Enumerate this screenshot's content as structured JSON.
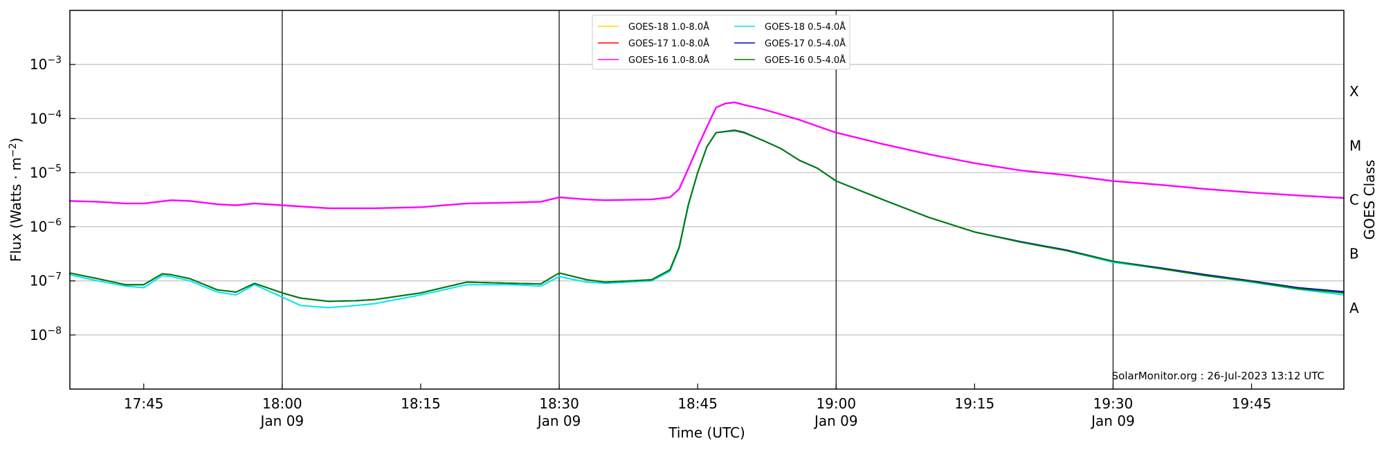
{
  "chart_data": {
    "type": "line",
    "xlabel": "Time (UTC)",
    "ylabel": "Flux (Watts · m⁻²)",
    "y2label": "GOES Class",
    "yscale": "log",
    "xlim": [
      "17:37",
      "19:55"
    ],
    "ylim": [
      1e-09,
      0.01
    ],
    "yticks": [
      {
        "value": 1e-08,
        "base": "10",
        "exp": "−8"
      },
      {
        "value": 1e-07,
        "base": "10",
        "exp": "−7"
      },
      {
        "value": 1e-06,
        "base": "10",
        "exp": "−6"
      },
      {
        "value": 1e-05,
        "base": "10",
        "exp": "−5"
      },
      {
        "value": 0.0001,
        "base": "10",
        "exp": "−4"
      },
      {
        "value": 0.001,
        "base": "10",
        "exp": "−3"
      }
    ],
    "xticks": [
      {
        "time": "17:45",
        "label": "17:45",
        "sublabel": ""
      },
      {
        "time": "18:00",
        "label": "18:00",
        "sublabel": "Jan 09"
      },
      {
        "time": "18:15",
        "label": "18:15",
        "sublabel": ""
      },
      {
        "time": "18:30",
        "label": "18:30",
        "sublabel": "Jan 09"
      },
      {
        "time": "18:45",
        "label": "18:45",
        "sublabel": ""
      },
      {
        "time": "19:00",
        "label": "19:00",
        "sublabel": "Jan 09"
      },
      {
        "time": "19:15",
        "label": "19:15",
        "sublabel": ""
      },
      {
        "time": "19:30",
        "label": "19:30",
        "sublabel": "Jan 09"
      },
      {
        "time": "19:45",
        "label": "19:45",
        "sublabel": ""
      }
    ],
    "day_lines": [
      "18:00",
      "18:30",
      "19:00",
      "19:30"
    ],
    "goes_classes": [
      {
        "label": "A",
        "value": 3.16e-08
      },
      {
        "label": "B",
        "value": 3.16e-07
      },
      {
        "label": "C",
        "value": 3.16e-06
      },
      {
        "label": "M",
        "value": 3.16e-05
      },
      {
        "label": "X",
        "value": 0.000316
      }
    ],
    "grid": true,
    "legend_position": "top-center",
    "watermark": "SolarMonitor.org : 26-Jul-2023 13:12 UTC",
    "legend": [
      {
        "name": "GOES-18 1.0-8.0Å",
        "color": "#ffd700"
      },
      {
        "name": "GOES-17 1.0-8.0Å",
        "color": "#ff0000"
      },
      {
        "name": "GOES-16 1.0-8.0Å",
        "color": "#ff00ff"
      },
      {
        "name": "GOES-18 0.5-4.0Å",
        "color": "#00e5ee"
      },
      {
        "name": "GOES-17 0.5-4.0Å",
        "color": "#0000cd"
      },
      {
        "name": "GOES-16 0.5-4.0Å",
        "color": "#008000"
      }
    ],
    "series": [
      {
        "name": "GOES-16 1.0-8.0Å",
        "color": "#ff00ff",
        "width": 2.4,
        "points": [
          [
            "17:37",
            3e-06
          ],
          [
            "17:40",
            2.9e-06
          ],
          [
            "17:43",
            2.7e-06
          ],
          [
            "17:45",
            2.7e-06
          ],
          [
            "17:48",
            3.1e-06
          ],
          [
            "17:50",
            3e-06
          ],
          [
            "17:53",
            2.6e-06
          ],
          [
            "17:55",
            2.5e-06
          ],
          [
            "17:57",
            2.7e-06
          ],
          [
            "18:00",
            2.5e-06
          ],
          [
            "18:05",
            2.2e-06
          ],
          [
            "18:10",
            2.2e-06
          ],
          [
            "18:15",
            2.3e-06
          ],
          [
            "18:20",
            2.7e-06
          ],
          [
            "18:25",
            2.8e-06
          ],
          [
            "18:28",
            2.9e-06
          ],
          [
            "18:30",
            3.5e-06
          ],
          [
            "18:33",
            3.2e-06
          ],
          [
            "18:35",
            3.1e-06
          ],
          [
            "18:40",
            3.2e-06
          ],
          [
            "18:42",
            3.5e-06
          ],
          [
            "18:43",
            5e-06
          ],
          [
            "18:44",
            1.2e-05
          ],
          [
            "18:45",
            3e-05
          ],
          [
            "18:46",
            7e-05
          ],
          [
            "18:47",
            0.00016
          ],
          [
            "18:48",
            0.00019
          ],
          [
            "18:49",
            0.0002
          ],
          [
            "18:50",
            0.00018
          ],
          [
            "18:52",
            0.00015
          ],
          [
            "18:54",
            0.00012
          ],
          [
            "18:56",
            9.5e-05
          ],
          [
            "18:58",
            7.2e-05
          ],
          [
            "19:00",
            5.5e-05
          ],
          [
            "19:05",
            3.4e-05
          ],
          [
            "19:10",
            2.2e-05
          ],
          [
            "19:15",
            1.5e-05
          ],
          [
            "19:20",
            1.1e-05
          ],
          [
            "19:25",
            9e-06
          ],
          [
            "19:30",
            7e-06
          ],
          [
            "19:35",
            6e-06
          ],
          [
            "19:40",
            5e-06
          ],
          [
            "19:45",
            4.3e-06
          ],
          [
            "19:50",
            3.8e-06
          ],
          [
            "19:55",
            3.4e-06
          ]
        ]
      },
      {
        "name": "GOES-18 0.5-4.0Å",
        "color": "#00e5ee",
        "width": 2.0,
        "points": [
          [
            "17:37",
            1.3e-07
          ],
          [
            "17:40",
            1e-07
          ],
          [
            "17:43",
            8e-08
          ],
          [
            "17:45",
            7.5e-08
          ],
          [
            "17:47",
            1.25e-07
          ],
          [
            "17:48",
            1.2e-07
          ],
          [
            "17:50",
            1e-07
          ],
          [
            "17:53",
            6.2e-08
          ],
          [
            "17:55",
            5.5e-08
          ],
          [
            "17:57",
            8.5e-08
          ],
          [
            "18:00",
            5e-08
          ],
          [
            "18:02",
            3.5e-08
          ],
          [
            "18:05",
            3.2e-08
          ],
          [
            "18:08",
            3.5e-08
          ],
          [
            "18:10",
            3.8e-08
          ],
          [
            "18:15",
            5.5e-08
          ],
          [
            "18:20",
            8.5e-08
          ],
          [
            "18:25",
            8.5e-08
          ],
          [
            "18:28",
            8e-08
          ],
          [
            "18:30",
            1.2e-07
          ],
          [
            "18:33",
            9.5e-08
          ],
          [
            "18:35",
            9e-08
          ],
          [
            "18:40",
            1e-07
          ],
          [
            "18:42",
            1.5e-07
          ],
          [
            "18:43",
            4e-07
          ],
          [
            "18:44",
            2.5e-06
          ],
          [
            "18:45",
            1e-05
          ],
          [
            "18:46",
            3e-05
          ],
          [
            "18:47",
            5.5e-05
          ],
          [
            "18:49",
            6e-05
          ],
          [
            "18:50",
            5.5e-05
          ],
          [
            "18:52",
            4e-05
          ],
          [
            "18:54",
            2.8e-05
          ],
          [
            "18:56",
            1.7e-05
          ],
          [
            "18:58",
            1.2e-05
          ],
          [
            "19:00",
            7e-06
          ],
          [
            "19:05",
            3.2e-06
          ],
          [
            "19:10",
            1.5e-06
          ],
          [
            "19:15",
            8e-07
          ],
          [
            "19:20",
            5.2e-07
          ],
          [
            "19:25",
            3.6e-07
          ],
          [
            "19:30",
            2.2e-07
          ],
          [
            "19:35",
            1.7e-07
          ],
          [
            "19:40",
            1.25e-07
          ],
          [
            "19:45",
            9.5e-08
          ],
          [
            "19:50",
            7e-08
          ],
          [
            "19:55",
            5.5e-08
          ]
        ]
      },
      {
        "name": "GOES-17 0.5-4.0Å",
        "color": "#0000cd",
        "width": 2.0,
        "points": [
          [
            "17:37",
            1.4e-07
          ],
          [
            "17:40",
            1.1e-07
          ],
          [
            "17:43",
            8.5e-08
          ],
          [
            "17:45",
            8.5e-08
          ],
          [
            "17:47",
            1.35e-07
          ],
          [
            "17:48",
            1.3e-07
          ],
          [
            "17:50",
            1.1e-07
          ],
          [
            "17:53",
            6.8e-08
          ],
          [
            "17:55",
            6.2e-08
          ],
          [
            "17:57",
            9e-08
          ],
          [
            "18:00",
            6e-08
          ],
          [
            "18:02",
            4.8e-08
          ],
          [
            "18:05",
            4.2e-08
          ],
          [
            "18:08",
            4.3e-08
          ],
          [
            "18:10",
            4.5e-08
          ],
          [
            "18:15",
            6e-08
          ],
          [
            "18:20",
            9.5e-08
          ],
          [
            "18:25",
            9e-08
          ],
          [
            "18:28",
            8.8e-08
          ],
          [
            "18:30",
            1.4e-07
          ],
          [
            "18:33",
            1.05e-07
          ],
          [
            "18:35",
            9.5e-08
          ],
          [
            "18:40",
            1.05e-07
          ],
          [
            "18:42",
            1.6e-07
          ],
          [
            "18:43",
            4.2e-07
          ],
          [
            "18:44",
            2.6e-06
          ],
          [
            "18:45",
            1e-05
          ],
          [
            "18:46",
            3e-05
          ],
          [
            "18:47",
            5.5e-05
          ],
          [
            "18:49",
            6.1e-05
          ],
          [
            "18:50",
            5.6e-05
          ],
          [
            "18:52",
            4e-05
          ],
          [
            "18:54",
            2.8e-05
          ],
          [
            "18:56",
            1.7e-05
          ],
          [
            "18:58",
            1.2e-05
          ],
          [
            "19:00",
            7e-06
          ],
          [
            "19:05",
            3.2e-06
          ],
          [
            "19:10",
            1.5e-06
          ],
          [
            "19:15",
            8e-07
          ],
          [
            "19:20",
            5.3e-07
          ],
          [
            "19:25",
            3.7e-07
          ],
          [
            "19:30",
            2.3e-07
          ],
          [
            "19:35",
            1.75e-07
          ],
          [
            "19:40",
            1.3e-07
          ],
          [
            "19:45",
            1e-07
          ],
          [
            "19:50",
            7.5e-08
          ],
          [
            "19:55",
            6.3e-08
          ]
        ]
      },
      {
        "name": "GOES-16 0.5-4.0Å",
        "color": "#008000",
        "width": 2.0,
        "points": [
          [
            "17:37",
            1.4e-07
          ],
          [
            "17:40",
            1.1e-07
          ],
          [
            "17:43",
            8.5e-08
          ],
          [
            "17:45",
            8.5e-08
          ],
          [
            "17:47",
            1.35e-07
          ],
          [
            "17:48",
            1.3e-07
          ],
          [
            "17:50",
            1.1e-07
          ],
          [
            "17:53",
            6.8e-08
          ],
          [
            "17:55",
            6.2e-08
          ],
          [
            "17:57",
            9e-08
          ],
          [
            "18:00",
            6e-08
          ],
          [
            "18:02",
            4.8e-08
          ],
          [
            "18:05",
            4.2e-08
          ],
          [
            "18:08",
            4.3e-08
          ],
          [
            "18:10",
            4.5e-08
          ],
          [
            "18:15",
            6e-08
          ],
          [
            "18:20",
            9.5e-08
          ],
          [
            "18:25",
            9e-08
          ],
          [
            "18:28",
            8.8e-08
          ],
          [
            "18:30",
            1.4e-07
          ],
          [
            "18:33",
            1.05e-07
          ],
          [
            "18:35",
            9.5e-08
          ],
          [
            "18:40",
            1.05e-07
          ],
          [
            "18:42",
            1.6e-07
          ],
          [
            "18:43",
            4.2e-07
          ],
          [
            "18:44",
            2.6e-06
          ],
          [
            "18:45",
            1e-05
          ],
          [
            "18:46",
            3e-05
          ],
          [
            "18:47",
            5.5e-05
          ],
          [
            "18:49",
            6e-05
          ],
          [
            "18:50",
            5.5e-05
          ],
          [
            "18:52",
            4e-05
          ],
          [
            "18:54",
            2.8e-05
          ],
          [
            "18:56",
            1.7e-05
          ],
          [
            "18:58",
            1.2e-05
          ],
          [
            "19:00",
            7e-06
          ],
          [
            "19:05",
            3.2e-06
          ],
          [
            "19:10",
            1.5e-06
          ],
          [
            "19:15",
            8e-07
          ],
          [
            "19:20",
            5.2e-07
          ],
          [
            "19:25",
            3.6e-07
          ],
          [
            "19:30",
            2.3e-07
          ],
          [
            "19:35",
            1.7e-07
          ],
          [
            "19:40",
            1.25e-07
          ],
          [
            "19:45",
            9.7e-08
          ],
          [
            "19:50",
            7.2e-08
          ],
          [
            "19:55",
            6e-08
          ]
        ]
      }
    ]
  }
}
